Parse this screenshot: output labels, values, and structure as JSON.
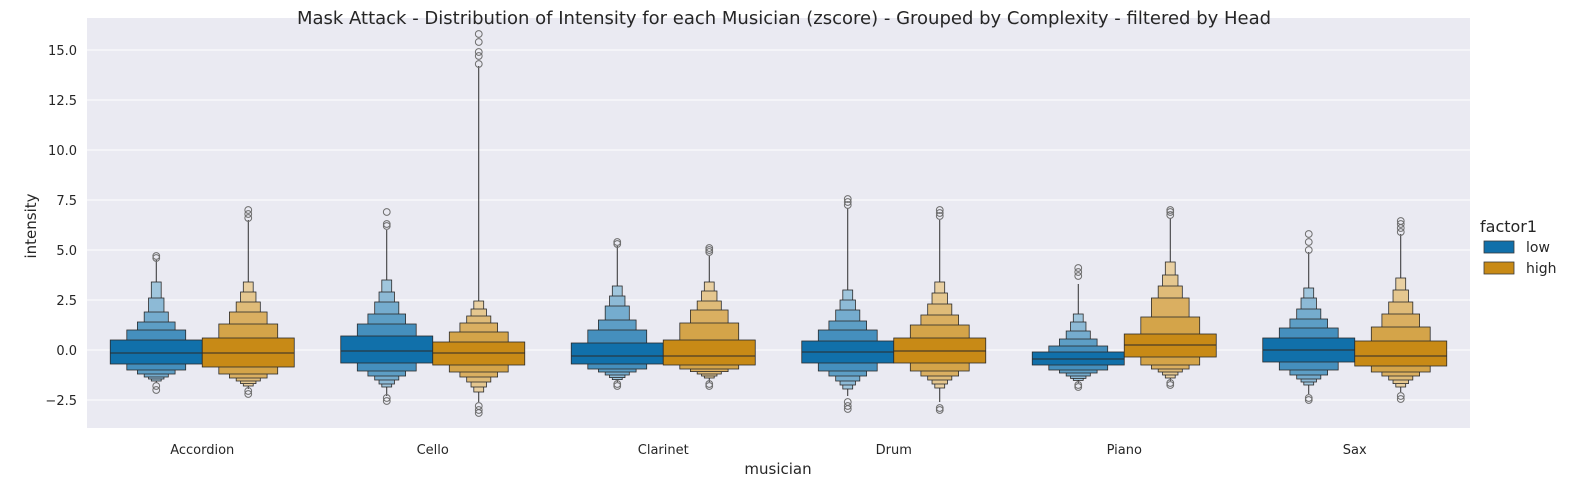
{
  "chart_data": {
    "type": "boxen",
    "title": "Mask Attack - Distribution of Intensity for each Musician (zscore) - Grouped by Complexity - filtered by Head",
    "xlabel": "musician",
    "ylabel": "intensity",
    "ylim": [
      -3.9,
      16.6
    ],
    "yticks": [
      -2.5,
      0.0,
      2.5,
      5.0,
      7.5,
      10.0,
      12.5,
      15.0
    ],
    "ytick_labels": [
      "−2.5",
      "0.0",
      "2.5",
      "5.0",
      "7.5",
      "10.0",
      "12.5",
      "15.0"
    ],
    "grid": true,
    "legend": {
      "title": "factor1",
      "placement": "right"
    },
    "categories": [
      "Accordion",
      "Cello",
      "Clarinet",
      "Drum",
      "Piano",
      "Sax"
    ],
    "series": [
      {
        "name": "low",
        "color": "#1170aa",
        "groups": [
          {
            "levels": [
              [
                -0.7,
                0.5
              ],
              [
                -1.0,
                1.0
              ],
              [
                -1.2,
                1.4
              ],
              [
                -1.35,
                1.9
              ],
              [
                -1.45,
                2.6
              ],
              [
                -1.55,
                3.4
              ]
            ],
            "median": -0.15,
            "whisker_top": 4.5,
            "whisker_bottom": -1.65,
            "outliers": [
              4.6,
              4.7,
              -1.8,
              -2.0
            ]
          },
          {
            "levels": [
              [
                -0.65,
                0.7
              ],
              [
                -1.05,
                1.3
              ],
              [
                -1.3,
                1.8
              ],
              [
                -1.5,
                2.4
              ],
              [
                -1.7,
                2.9
              ],
              [
                -1.85,
                3.5
              ]
            ],
            "median": -0.05,
            "whisker_top": 6.0,
            "whisker_bottom": -2.3,
            "outliers": [
              6.2,
              6.3,
              6.9,
              -2.4,
              -2.55
            ]
          },
          {
            "levels": [
              [
                -0.7,
                0.35
              ],
              [
                -0.95,
                1.0
              ],
              [
                -1.1,
                1.5
              ],
              [
                -1.25,
                2.2
              ],
              [
                -1.38,
                2.7
              ],
              [
                -1.48,
                3.2
              ]
            ],
            "median": -0.3,
            "whisker_top": 5.2,
            "whisker_bottom": -1.6,
            "outliers": [
              5.3,
              5.4,
              -1.7,
              -1.8
            ]
          },
          {
            "levels": [
              [
                -0.65,
                0.45
              ],
              [
                -1.05,
                1.0
              ],
              [
                -1.3,
                1.45
              ],
              [
                -1.55,
                2.0
              ],
              [
                -1.75,
                2.5
              ],
              [
                -1.95,
                3.0
              ]
            ],
            "median": -0.1,
            "whisker_top": 7.1,
            "whisker_bottom": -2.3,
            "outliers": [
              7.25,
              7.4,
              7.55,
              -2.6,
              -2.8,
              -2.95
            ]
          },
          {
            "levels": [
              [
                -0.75,
                -0.1
              ],
              [
                -1.0,
                0.2
              ],
              [
                -1.15,
                0.55
              ],
              [
                -1.3,
                0.95
              ],
              [
                -1.42,
                1.4
              ],
              [
                -1.52,
                1.8
              ]
            ],
            "median": -0.45,
            "whisker_top": 3.3,
            "whisker_bottom": -1.65,
            "outliers": [
              3.7,
              3.9,
              4.1,
              -1.75,
              -1.85
            ]
          },
          {
            "levels": [
              [
                -0.6,
                0.6
              ],
              [
                -1.0,
                1.1
              ],
              [
                -1.25,
                1.55
              ],
              [
                -1.45,
                2.05
              ],
              [
                -1.6,
                2.6
              ],
              [
                -1.75,
                3.1
              ]
            ],
            "median": 0.0,
            "whisker_top": 4.9,
            "whisker_bottom": -2.2,
            "outliers": [
              5.0,
              5.4,
              5.8,
              -2.4,
              -2.5
            ]
          }
        ]
      },
      {
        "name": "high",
        "color": "#c88a16",
        "groups": [
          {
            "levels": [
              [
                -0.85,
                0.6
              ],
              [
                -1.2,
                1.3
              ],
              [
                -1.4,
                1.9
              ],
              [
                -1.55,
                2.4
              ],
              [
                -1.68,
                2.9
              ],
              [
                -1.8,
                3.4
              ]
            ],
            "median": -0.15,
            "whisker_top": 6.5,
            "whisker_bottom": -1.95,
            "outliers": [
              6.6,
              6.8,
              7.0,
              -2.05,
              -2.2
            ]
          },
          {
            "levels": [
              [
                -0.75,
                0.4
              ],
              [
                -1.1,
                0.9
              ],
              [
                -1.35,
                1.35
              ],
              [
                -1.6,
                1.7
              ],
              [
                -1.85,
                2.05
              ],
              [
                -2.1,
                2.45
              ]
            ],
            "median": -0.15,
            "whisker_top": 14.2,
            "whisker_bottom": -2.6,
            "outliers": [
              14.3,
              14.7,
              14.9,
              15.4,
              15.8,
              -2.8,
              -3.0,
              -3.15
            ]
          },
          {
            "levels": [
              [
                -0.75,
                0.5
              ],
              [
                -0.95,
                1.35
              ],
              [
                -1.08,
                2.0
              ],
              [
                -1.2,
                2.45
              ],
              [
                -1.3,
                2.95
              ],
              [
                -1.4,
                3.4
              ]
            ],
            "median": -0.3,
            "whisker_top": 4.7,
            "whisker_bottom": -1.6,
            "outliers": [
              4.9,
              5.0,
              5.1,
              -1.7,
              -1.8
            ]
          },
          {
            "levels": [
              [
                -0.65,
                0.6
              ],
              [
                -1.05,
                1.25
              ],
              [
                -1.3,
                1.75
              ],
              [
                -1.5,
                2.3
              ],
              [
                -1.7,
                2.85
              ],
              [
                -1.9,
                3.4
              ]
            ],
            "median": -0.05,
            "whisker_top": 6.5,
            "whisker_bottom": -2.6,
            "outliers": [
              6.7,
              6.85,
              7.0,
              -2.9,
              -3.0
            ]
          },
          {
            "levels": [
              [
                -0.35,
                0.8
              ],
              [
                -0.75,
                1.65
              ],
              [
                -0.95,
                2.6
              ],
              [
                -1.1,
                3.2
              ],
              [
                -1.25,
                3.75
              ],
              [
                -1.4,
                4.4
              ]
            ],
            "median": 0.25,
            "whisker_top": 6.6,
            "whisker_bottom": -1.55,
            "outliers": [
              6.75,
              6.9,
              7.0,
              -1.65,
              -1.75
            ]
          },
          {
            "levels": [
              [
                -0.8,
                0.45
              ],
              [
                -1.1,
                1.15
              ],
              [
                -1.3,
                1.8
              ],
              [
                -1.5,
                2.4
              ],
              [
                -1.68,
                3.0
              ],
              [
                -1.85,
                3.6
              ]
            ],
            "median": -0.3,
            "whisker_top": 5.8,
            "whisker_bottom": -2.1,
            "outliers": [
              5.9,
              6.1,
              6.3,
              6.45,
              -2.3,
              -2.45
            ]
          }
        ]
      }
    ]
  }
}
